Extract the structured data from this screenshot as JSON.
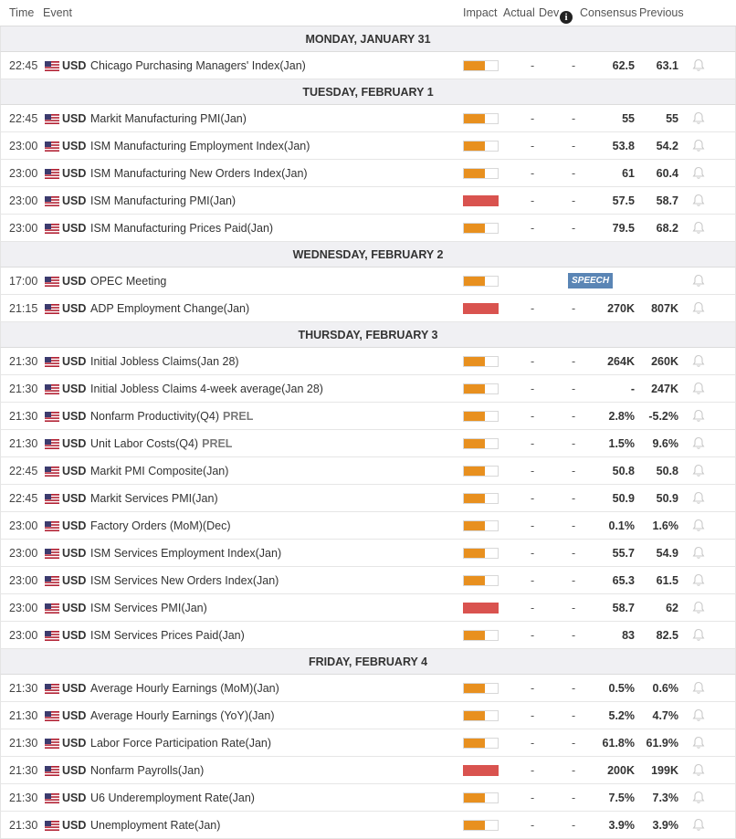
{
  "columns": {
    "time": "Time",
    "event": "Event",
    "impact": "Impact",
    "actual": "Actual",
    "dev": "Dev",
    "info_icon": "info-icon",
    "consensus": "Consensus",
    "previous": "Previous"
  },
  "colors": {
    "impact_medium": "#e8901f",
    "impact_high": "#d9534f",
    "speech_badge": "#5a85b5"
  },
  "days": [
    {
      "label": "MONDAY, JANUARY 31",
      "events": [
        {
          "time": "22:45",
          "currency": "USD",
          "event": "Chicago Purchasing Managers' Index(Jan)",
          "impact": "medium",
          "actual": "-",
          "dev": "-",
          "consensus": "62.5",
          "previous": "63.1"
        }
      ]
    },
    {
      "label": "TUESDAY, FEBRUARY 1",
      "events": [
        {
          "time": "22:45",
          "currency": "USD",
          "event": "Markit Manufacturing PMI(Jan)",
          "impact": "medium",
          "actual": "-",
          "dev": "-",
          "consensus": "55",
          "previous": "55"
        },
        {
          "time": "23:00",
          "currency": "USD",
          "event": "ISM Manufacturing Employment Index(Jan)",
          "impact": "medium",
          "actual": "-",
          "dev": "-",
          "consensus": "53.8",
          "previous": "54.2"
        },
        {
          "time": "23:00",
          "currency": "USD",
          "event": "ISM Manufacturing New Orders Index(Jan)",
          "impact": "medium",
          "actual": "-",
          "dev": "-",
          "consensus": "61",
          "previous": "60.4"
        },
        {
          "time": "23:00",
          "currency": "USD",
          "event": "ISM Manufacturing PMI(Jan)",
          "impact": "high",
          "actual": "-",
          "dev": "-",
          "consensus": "57.5",
          "previous": "58.7"
        },
        {
          "time": "23:00",
          "currency": "USD",
          "event": "ISM Manufacturing Prices Paid(Jan)",
          "impact": "medium",
          "actual": "-",
          "dev": "-",
          "consensus": "79.5",
          "previous": "68.2"
        }
      ]
    },
    {
      "label": "WEDNESDAY, FEBRUARY 2",
      "events": [
        {
          "time": "17:00",
          "currency": "USD",
          "event": "OPEC Meeting",
          "impact": "medium",
          "actual": "",
          "dev": "",
          "consensus": "",
          "previous": "",
          "badge": "SPEECH"
        },
        {
          "time": "21:15",
          "currency": "USD",
          "event": "ADP Employment Change(Jan)",
          "impact": "high",
          "actual": "-",
          "dev": "-",
          "consensus": "270K",
          "previous": "807K"
        }
      ]
    },
    {
      "label": "THURSDAY, FEBRUARY 3",
      "events": [
        {
          "time": "21:30",
          "currency": "USD",
          "event": "Initial Jobless Claims(Jan 28)",
          "impact": "medium",
          "actual": "-",
          "dev": "-",
          "consensus": "264K",
          "previous": "260K"
        },
        {
          "time": "21:30",
          "currency": "USD",
          "event": "Initial Jobless Claims 4-week average(Jan 28)",
          "impact": "medium",
          "actual": "-",
          "dev": "-",
          "consensus": "-",
          "previous": "247K"
        },
        {
          "time": "21:30",
          "currency": "USD",
          "event": "Nonfarm Productivity(Q4)",
          "tag": "PREL",
          "impact": "medium",
          "actual": "-",
          "dev": "-",
          "consensus": "2.8%",
          "previous": "-5.2%"
        },
        {
          "time": "21:30",
          "currency": "USD",
          "event": "Unit Labor Costs(Q4)",
          "tag": "PREL",
          "impact": "medium",
          "actual": "-",
          "dev": "-",
          "consensus": "1.5%",
          "previous": "9.6%"
        },
        {
          "time": "22:45",
          "currency": "USD",
          "event": "Markit PMI Composite(Jan)",
          "impact": "medium",
          "actual": "-",
          "dev": "-",
          "consensus": "50.8",
          "previous": "50.8"
        },
        {
          "time": "22:45",
          "currency": "USD",
          "event": "Markit Services PMI(Jan)",
          "impact": "medium",
          "actual": "-",
          "dev": "-",
          "consensus": "50.9",
          "previous": "50.9"
        },
        {
          "time": "23:00",
          "currency": "USD",
          "event": "Factory Orders (MoM)(Dec)",
          "impact": "medium",
          "actual": "-",
          "dev": "-",
          "consensus": "0.1%",
          "previous": "1.6%"
        },
        {
          "time": "23:00",
          "currency": "USD",
          "event": "ISM Services Employment Index(Jan)",
          "impact": "medium",
          "actual": "-",
          "dev": "-",
          "consensus": "55.7",
          "previous": "54.9"
        },
        {
          "time": "23:00",
          "currency": "USD",
          "event": "ISM Services New Orders Index(Jan)",
          "impact": "medium",
          "actual": "-",
          "dev": "-",
          "consensus": "65.3",
          "previous": "61.5"
        },
        {
          "time": "23:00",
          "currency": "USD",
          "event": "ISM Services PMI(Jan)",
          "impact": "high",
          "actual": "-",
          "dev": "-",
          "consensus": "58.7",
          "previous": "62"
        },
        {
          "time": "23:00",
          "currency": "USD",
          "event": "ISM Services Prices Paid(Jan)",
          "impact": "medium",
          "actual": "-",
          "dev": "-",
          "consensus": "83",
          "previous": "82.5"
        }
      ]
    },
    {
      "label": "FRIDAY, FEBRUARY 4",
      "events": [
        {
          "time": "21:30",
          "currency": "USD",
          "event": "Average Hourly Earnings (MoM)(Jan)",
          "impact": "medium",
          "actual": "-",
          "dev": "-",
          "consensus": "0.5%",
          "previous": "0.6%"
        },
        {
          "time": "21:30",
          "currency": "USD",
          "event": "Average Hourly Earnings (YoY)(Jan)",
          "impact": "medium",
          "actual": "-",
          "dev": "-",
          "consensus": "5.2%",
          "previous": "4.7%"
        },
        {
          "time": "21:30",
          "currency": "USD",
          "event": "Labor Force Participation Rate(Jan)",
          "impact": "medium",
          "actual": "-",
          "dev": "-",
          "consensus": "61.8%",
          "previous": "61.9%"
        },
        {
          "time": "21:30",
          "currency": "USD",
          "event": "Nonfarm Payrolls(Jan)",
          "impact": "high",
          "actual": "-",
          "dev": "-",
          "consensus": "200K",
          "previous": "199K"
        },
        {
          "time": "21:30",
          "currency": "USD",
          "event": "U6 Underemployment Rate(Jan)",
          "impact": "medium",
          "actual": "-",
          "dev": "-",
          "consensus": "7.5%",
          "previous": "7.3%"
        },
        {
          "time": "21:30",
          "currency": "USD",
          "event": "Unemployment Rate(Jan)",
          "impact": "medium",
          "actual": "-",
          "dev": "-",
          "consensus": "3.9%",
          "previous": "3.9%"
        }
      ]
    }
  ]
}
